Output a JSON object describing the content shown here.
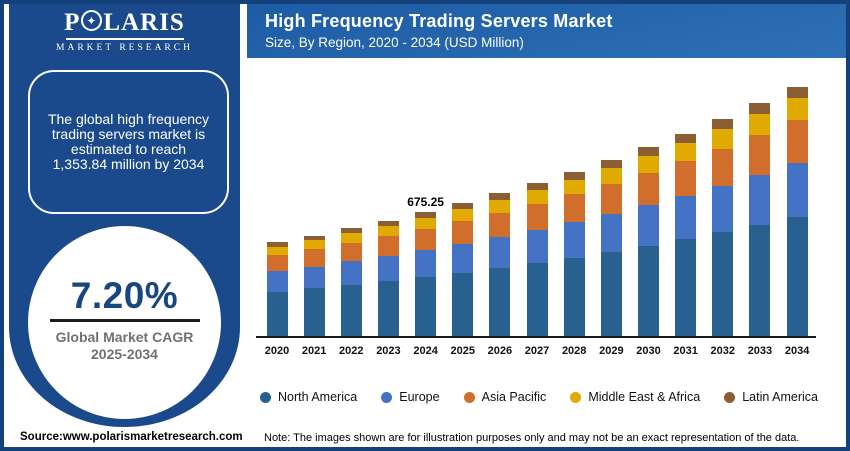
{
  "brand": {
    "logo_p": "P",
    "logo_star": "✦",
    "logo_rest": "LARIS",
    "logo_subtitle": "MARKET RESEARCH"
  },
  "sidebar": {
    "message_lines": [
      "The global high frequency",
      "trading servers market is",
      "estimated to reach",
      "1,353.84 million by 2034"
    ],
    "cagr_value": "7.20%",
    "cagr_label_line1": "Global Market CAGR",
    "cagr_label_line2": "2025-2034"
  },
  "header": {
    "title": "High Frequency Trading Servers Market",
    "subtitle": "Size, By Region, 2020 - 2034 (USD Million)"
  },
  "footer": {
    "source": "Source:www.polarismarketresearch.com",
    "note": "Note: The images shown are for illustration purposes only and may not be an exact representation of the data."
  },
  "colors": {
    "frame_blue": "#14407B",
    "sidebar_blue": "#1A4A8C",
    "header_gradient_start": "#1D5CA4",
    "header_gradient_end": "#2E6FB5",
    "cagr_navy": "#17477F",
    "cagr_gray": "#6F7173",
    "axis_black": "#1A1A1A"
  },
  "chart_data": {
    "type": "bar",
    "stacked": true,
    "title": "High Frequency Trading Servers Market",
    "subtitle": "Size, By Region, 2020 - 2034 (USD Million)",
    "unit": "USD Million",
    "grid": false,
    "legend_position": "bottom",
    "ylim": [
      0,
      1400
    ],
    "categories": [
      "2020",
      "2021",
      "2022",
      "2023",
      "2024",
      "2025",
      "2026",
      "2027",
      "2028",
      "2029",
      "2030",
      "2031",
      "2032",
      "2033",
      "2034"
    ],
    "series": [
      {
        "name": "North America",
        "color": "#28618F",
        "values": [
          245.45,
          263.13,
          282.07,
          302.38,
          324.12,
          347.46,
          372.48,
          399.29,
          428.04,
          458.86,
          491.9,
          527.31,
          565.28,
          605.98,
          649.84
        ]
      },
      {
        "name": "Europe",
        "color": "#4472C4",
        "values": [
          109.94,
          117.86,
          126.34,
          135.44,
          145.18,
          155.63,
          166.84,
          178.85,
          191.73,
          205.53,
          220.33,
          236.19,
          253.2,
          271.43,
          291.08
        ]
      },
      {
        "name": "Asia Pacific",
        "color": "#D16E2B",
        "values": [
          86.93,
          93.19,
          99.9,
          107.09,
          114.79,
          123.06,
          131.92,
          141.42,
          151.6,
          162.51,
          174.21,
          186.76,
          200.2,
          214.62,
          230.15
        ]
      },
      {
        "name": "Middle East & Africa",
        "color": "#E0AA00",
        "values": [
          45.0,
          48.24,
          51.71,
          55.44,
          59.42,
          63.7,
          68.29,
          73.2,
          78.47,
          84.12,
          90.18,
          96.67,
          103.63,
          111.1,
          119.14
        ]
      },
      {
        "name": "Latin America",
        "color": "#8B5E34",
        "values": [
          24.03,
          25.76,
          27.62,
          29.61,
          31.74,
          34.02,
          36.47,
          39.1,
          41.91,
          44.93,
          48.17,
          51.63,
          55.35,
          59.34,
          63.63
        ]
      }
    ],
    "totals": [
      511.36,
      548.18,
      587.65,
      629.96,
      675.25,
      723.87,
      775.99,
      831.86,
      891.75,
      955.96,
      1024.79,
      1098.57,
      1177.67,
      1262.46,
      1353.84
    ],
    "data_label": {
      "category": "2024",
      "text": "675.25"
    }
  }
}
